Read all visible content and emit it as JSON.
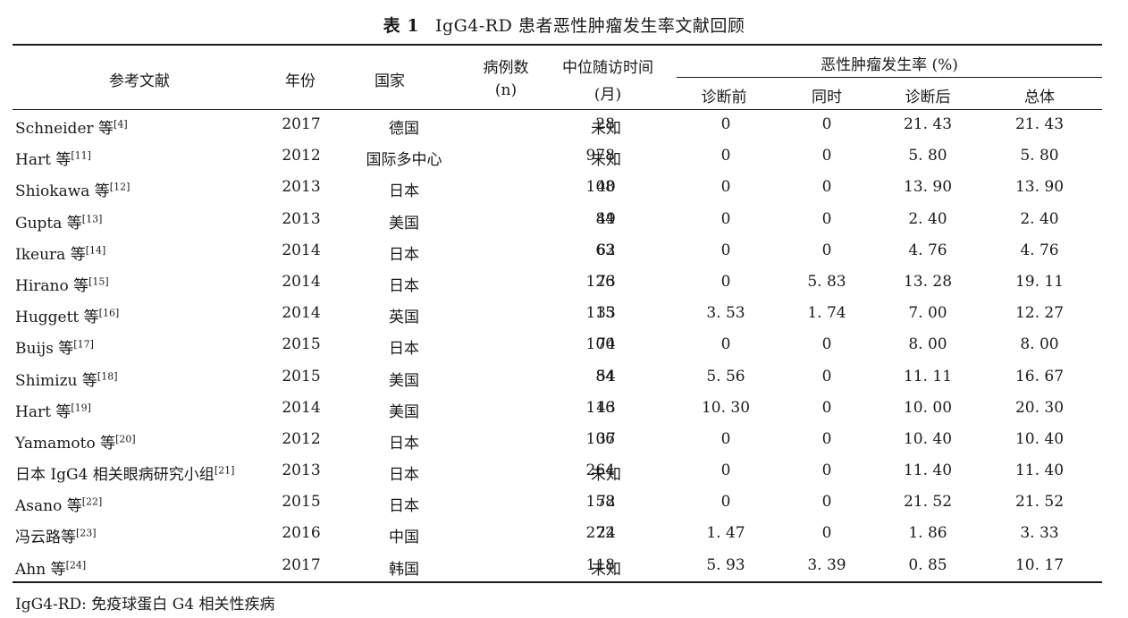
{
  "caption": {
    "number": "表 1",
    "title": "IgG4-RD 患者恶性肿瘤发生率文献回顾"
  },
  "headers": {
    "reference": "参考文献",
    "year": "年份",
    "country": "国家",
    "cases": "病例数",
    "cases_unit": "(n)",
    "followup": "中位随访时间",
    "followup_unit": "(月)",
    "incidence_group": "恶性肿瘤发生率 (%)",
    "before": "诊断前",
    "same": "同时",
    "after": "诊断后",
    "total": "总体"
  },
  "rows": [
    {
      "ref": "Schneider 等",
      "cite": "[4]",
      "year": "2017",
      "country": "德国",
      "n": "28",
      "fu": "未知",
      "before": "0",
      "same": "0",
      "after": "21. 43",
      "total": "21. 43"
    },
    {
      "ref": "Hart 等",
      "cite": "[11]",
      "year": "2012",
      "country": "国际多中心",
      "n": "978",
      "fu": "未知",
      "before": "0",
      "same": "0",
      "after": "5. 80",
      "total": "5. 80"
    },
    {
      "ref": "Shiokawa 等",
      "cite": "[12]",
      "year": "2013",
      "country": "日本",
      "n": "108",
      "fu": "40",
      "before": "0",
      "same": "0",
      "after": "13. 90",
      "total": "13. 90"
    },
    {
      "ref": "Gupta 等",
      "cite": "[13]",
      "year": "2013",
      "country": "美国",
      "n": "84",
      "fu": "49",
      "before": "0",
      "same": "0",
      "after": "2. 40",
      "total": "2. 40"
    },
    {
      "ref": "Ikeura 等",
      "cite": "[14]",
      "year": "2014",
      "country": "日本",
      "n": "63",
      "fu": "62",
      "before": "0",
      "same": "0",
      "after": "4. 76",
      "total": "4. 76"
    },
    {
      "ref": "Hirano 等",
      "cite": "[15]",
      "year": "2014",
      "country": "日本",
      "n": "126",
      "fu": "73",
      "before": "0",
      "same": "5. 83",
      "after": "13. 28",
      "total": "19. 11"
    },
    {
      "ref": "Huggett 等",
      "cite": "[16]",
      "year": "2014",
      "country": "英国",
      "n": "115",
      "fu": "33",
      "before": "3. 53",
      "same": "1. 74",
      "after": "7. 00",
      "total": "12. 27"
    },
    {
      "ref": "Buijs 等",
      "cite": "[17]",
      "year": "2015",
      "country": "日本",
      "n": "100",
      "fu": "74",
      "before": "0",
      "same": "0",
      "after": "8. 00",
      "total": "8. 00"
    },
    {
      "ref": "Shimizu 等",
      "cite": "[18]",
      "year": "2015",
      "country": "美国",
      "n": "84",
      "fu": "54",
      "before": "5. 56",
      "same": "0",
      "after": "11. 11",
      "total": "16. 67"
    },
    {
      "ref": "Hart 等",
      "cite": "[19]",
      "year": "2014",
      "country": "美国",
      "n": "116",
      "fu": "43",
      "before": "10. 30",
      "same": "0",
      "after": "10. 00",
      "total": "20. 30"
    },
    {
      "ref": "Yamamoto 等",
      "cite": "[20]",
      "year": "2012",
      "country": "日本",
      "n": "106",
      "fu": "37",
      "before": "0",
      "same": "0",
      "after": "10. 40",
      "total": "10. 40"
    },
    {
      "ref": "日本 IgG4 相关眼病研究小组",
      "cite": "[21]",
      "year": "2013",
      "country": "日本",
      "n": "264",
      "fu": "未知",
      "before": "0",
      "same": "0",
      "after": "11. 40",
      "total": "11. 40"
    },
    {
      "ref": "Asano 等",
      "cite": "[22]",
      "year": "2015",
      "country": "日本",
      "n": "158",
      "fu": "72",
      "before": "0",
      "same": "0",
      "after": "21. 52",
      "total": "21. 52"
    },
    {
      "ref": "冯云路等",
      "cite": "[23]",
      "year": "2016",
      "country": "中国",
      "n": "272",
      "fu": "24",
      "before": "1. 47",
      "same": "0",
      "after": "1. 86",
      "total": "3. 33"
    },
    {
      "ref": "Ahn 等",
      "cite": "[24]",
      "year": "2017",
      "country": "韩国",
      "n": "118",
      "fu": "未知",
      "before": "5. 93",
      "same": "3. 39",
      "after": "0. 85",
      "total": "10. 17"
    }
  ],
  "footnote": "IgG4-RD: 免疫球蛋白 G4 相关性疾病"
}
